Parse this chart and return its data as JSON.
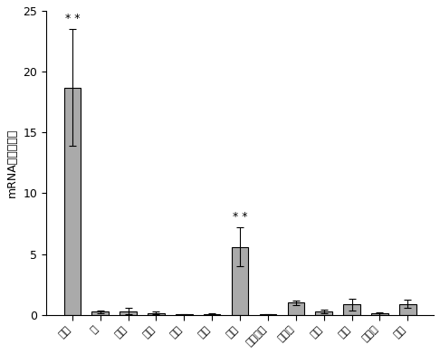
{
  "categories": [
    "垂体",
    "肺",
    "腹脂",
    "肯脏",
    "卵巢",
    "脾脏",
    "肾脏",
    "十二指肠",
    "下丘脑",
    "腺胃",
    "心脏",
    "骨骼肌",
    "胰腺"
  ],
  "values": [
    18.7,
    0.25,
    0.3,
    0.15,
    0.05,
    0.08,
    5.6,
    0.05,
    1.0,
    0.3,
    0.85,
    0.1,
    0.9
  ],
  "errors": [
    4.8,
    0.12,
    0.25,
    0.1,
    0.04,
    0.06,
    1.6,
    0.04,
    0.2,
    0.15,
    0.5,
    0.08,
    0.35
  ],
  "bar_color": "#aaaaaa",
  "bar_edge_color": "#000000",
  "significance": [
    true,
    false,
    false,
    false,
    false,
    false,
    true,
    false,
    false,
    false,
    false,
    false,
    false
  ],
  "ylabel": "mRNA相对表达量",
  "ylim": [
    0,
    25
  ],
  "yticks": [
    0,
    5,
    10,
    15,
    20,
    25
  ],
  "background_color": "#ffffff",
  "sig_label": "* *"
}
